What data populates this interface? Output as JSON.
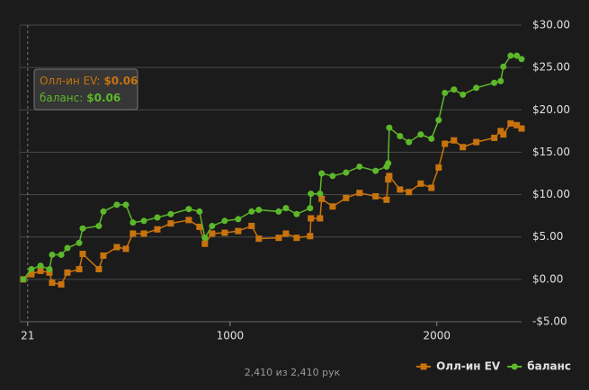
{
  "chart_data": {
    "type": "line",
    "x": [
      0,
      39,
      83,
      126,
      139,
      183,
      213,
      270,
      287,
      365,
      387,
      452,
      496,
      530,
      583,
      648,
      713,
      800,
      852,
      878,
      913,
      974,
      1039,
      1104,
      1139,
      1235,
      1270,
      1322,
      1387,
      1391,
      1435,
      1443,
      1496,
      1561,
      1626,
      1704,
      1757,
      1765,
      1770,
      1822,
      1865,
      1922,
      1974,
      2009,
      2039,
      2083,
      2126,
      2191,
      2278,
      2309,
      2322,
      2357,
      2387,
      2410
    ],
    "series": [
      {
        "name": "Олл-ин EV",
        "color": "#c8730e",
        "marker": "square",
        "values": [
          0,
          0.6,
          1.0,
          0.8,
          -0.4,
          -0.6,
          0.8,
          1.2,
          3.0,
          1.2,
          2.8,
          3.8,
          3.6,
          5.4,
          5.4,
          5.9,
          6.6,
          7.0,
          6.2,
          4.2,
          5.4,
          5.5,
          5.7,
          6.3,
          4.8,
          4.9,
          5.4,
          4.9,
          5.1,
          7.2,
          7.2,
          9.5,
          8.6,
          9.6,
          10.2,
          9.8,
          9.4,
          11.8,
          12.2,
          10.6,
          10.3,
          11.3,
          10.8,
          13.2,
          16.0,
          16.4,
          15.6,
          16.2,
          16.7,
          17.5,
          17.1,
          18.4,
          18.2,
          17.8
        ]
      },
      {
        "name": "баланс",
        "color": "#5cb82a",
        "marker": "circle",
        "values": [
          0,
          1.2,
          1.6,
          1.2,
          2.9,
          2.9,
          3.7,
          4.3,
          6.0,
          6.3,
          8.0,
          8.8,
          8.8,
          6.7,
          6.9,
          7.3,
          7.7,
          8.3,
          8.0,
          4.9,
          6.3,
          6.9,
          7.1,
          8.0,
          8.2,
          8.0,
          8.4,
          7.7,
          8.4,
          10.1,
          10.1,
          12.5,
          12.2,
          12.6,
          13.3,
          12.8,
          13.3,
          13.7,
          17.9,
          16.9,
          16.2,
          17.1,
          16.6,
          18.8,
          22.0,
          22.4,
          21.8,
          22.6,
          23.2,
          23.4,
          25.1,
          26.4,
          26.4,
          26.0
        ]
      }
    ],
    "xlim": [
      0,
      2410
    ],
    "xticks": [
      21,
      1000,
      2000
    ],
    "ylim": [
      -5,
      30
    ],
    "yticks": [
      {
        "value": -5,
        "label": "-$5.00"
      },
      {
        "value": 0,
        "label": "$0.00"
      },
      {
        "value": 5,
        "label": "$5.00"
      },
      {
        "value": 10,
        "label": "$10.00"
      },
      {
        "value": 15,
        "label": "$15.00"
      },
      {
        "value": 20,
        "label": "$20.00"
      },
      {
        "value": 25,
        "label": "$25.00"
      },
      {
        "value": 30,
        "label": "$30.00"
      }
    ],
    "grid": true,
    "legend": "bottom-right",
    "tooltip": [
      {
        "label": "Олл-ин EV:",
        "value": "$0.06"
      },
      {
        "label": "баланс:",
        "value": "$0.06"
      }
    ],
    "footer": "2,410 из 2,410 рук"
  }
}
